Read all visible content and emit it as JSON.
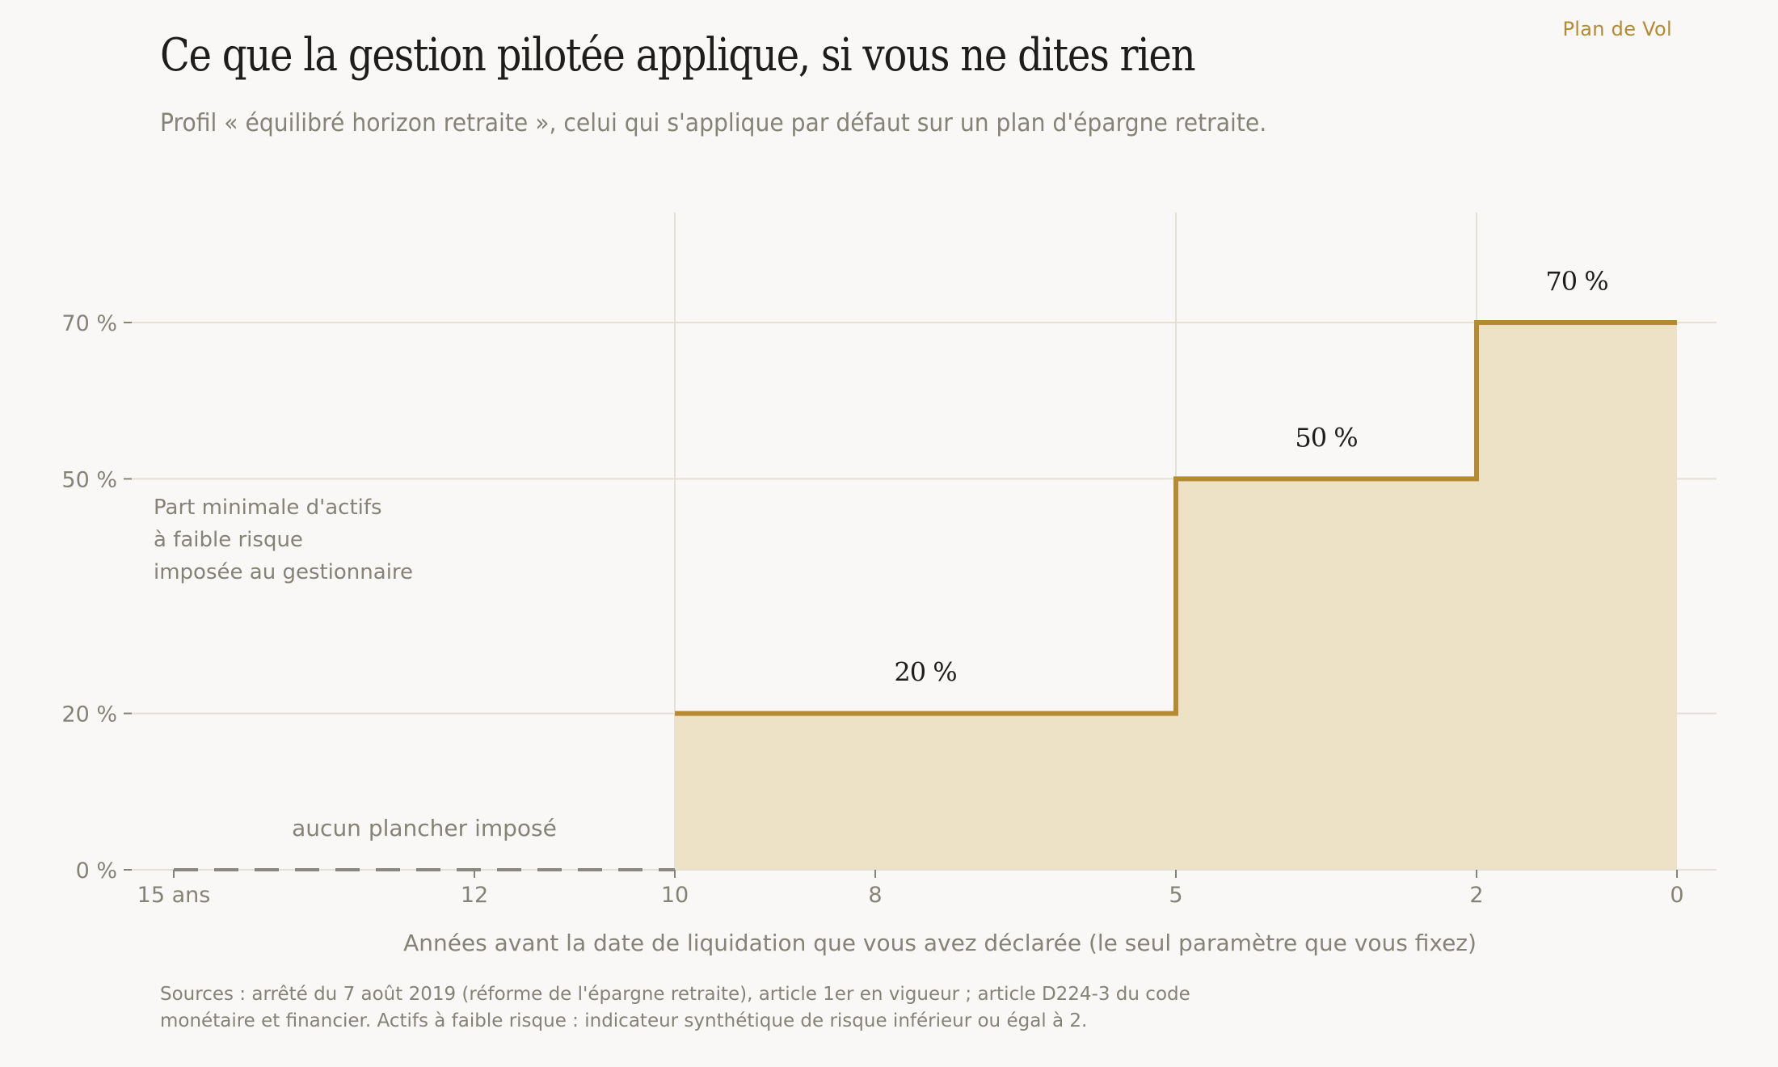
{
  "brand": "Plan de Vol",
  "title": "Ce que la gestion pilotée applique, si vous ne dites rien",
  "subtitle": "Profil « équilibré horizon retraite », celui qui s'applique par défaut sur un plan d'épargne retraite.",
  "sources": [
    "Sources : arrêté du 7 août 2019 (réforme de l'épargne retraite), article 1er en vigueur ; article D224-3 du code",
    "monétaire et financier. Actifs à faible risque : indicateur synthétique de risque inférieur ou égal à 2."
  ],
  "colors": {
    "accent": "#b48a32",
    "fill": "#ede2c6",
    "grid": "#e4e0d6",
    "text": "#858278",
    "label": "#1e1d1b",
    "dash": "#8c887f"
  },
  "chart_data": {
    "type": "area",
    "xlabel": "Années avant la date de liquidation que vous avez déclarée (le seul paramètre que vous fixez)",
    "ylabel_lines": [
      "Part minimale d'actifs",
      "à faible risque",
      "imposée au gestionnaire"
    ],
    "xlim": [
      15,
      0
    ],
    "x_ticks": [
      {
        "value": 15,
        "label": "15 ans"
      },
      {
        "value": 12,
        "label": "12"
      },
      {
        "value": 10,
        "label": "10"
      },
      {
        "value": 8,
        "label": "8"
      },
      {
        "value": 5,
        "label": "5"
      },
      {
        "value": 2,
        "label": "2"
      },
      {
        "value": 0,
        "label": "0"
      }
    ],
    "ylim": [
      0,
      70
    ],
    "y_ticks": [
      {
        "value": 0,
        "label": "0 %"
      },
      {
        "value": 20,
        "label": "20 %"
      },
      {
        "value": 50,
        "label": "50 %"
      },
      {
        "value": 70,
        "label": "70 %"
      }
    ],
    "vertical_gridlines": [
      10,
      5,
      2
    ],
    "steps": [
      {
        "from": 15,
        "to": 10,
        "value": 0,
        "label": "aucun plancher imposé",
        "style": "dashed"
      },
      {
        "from": 10,
        "to": 5,
        "value": 20,
        "label": "20 %",
        "style": "solid"
      },
      {
        "from": 5,
        "to": 2,
        "value": 50,
        "label": "50 %",
        "style": "solid"
      },
      {
        "from": 2,
        "to": 0,
        "value": 70,
        "label": "70 %",
        "style": "solid"
      }
    ]
  }
}
